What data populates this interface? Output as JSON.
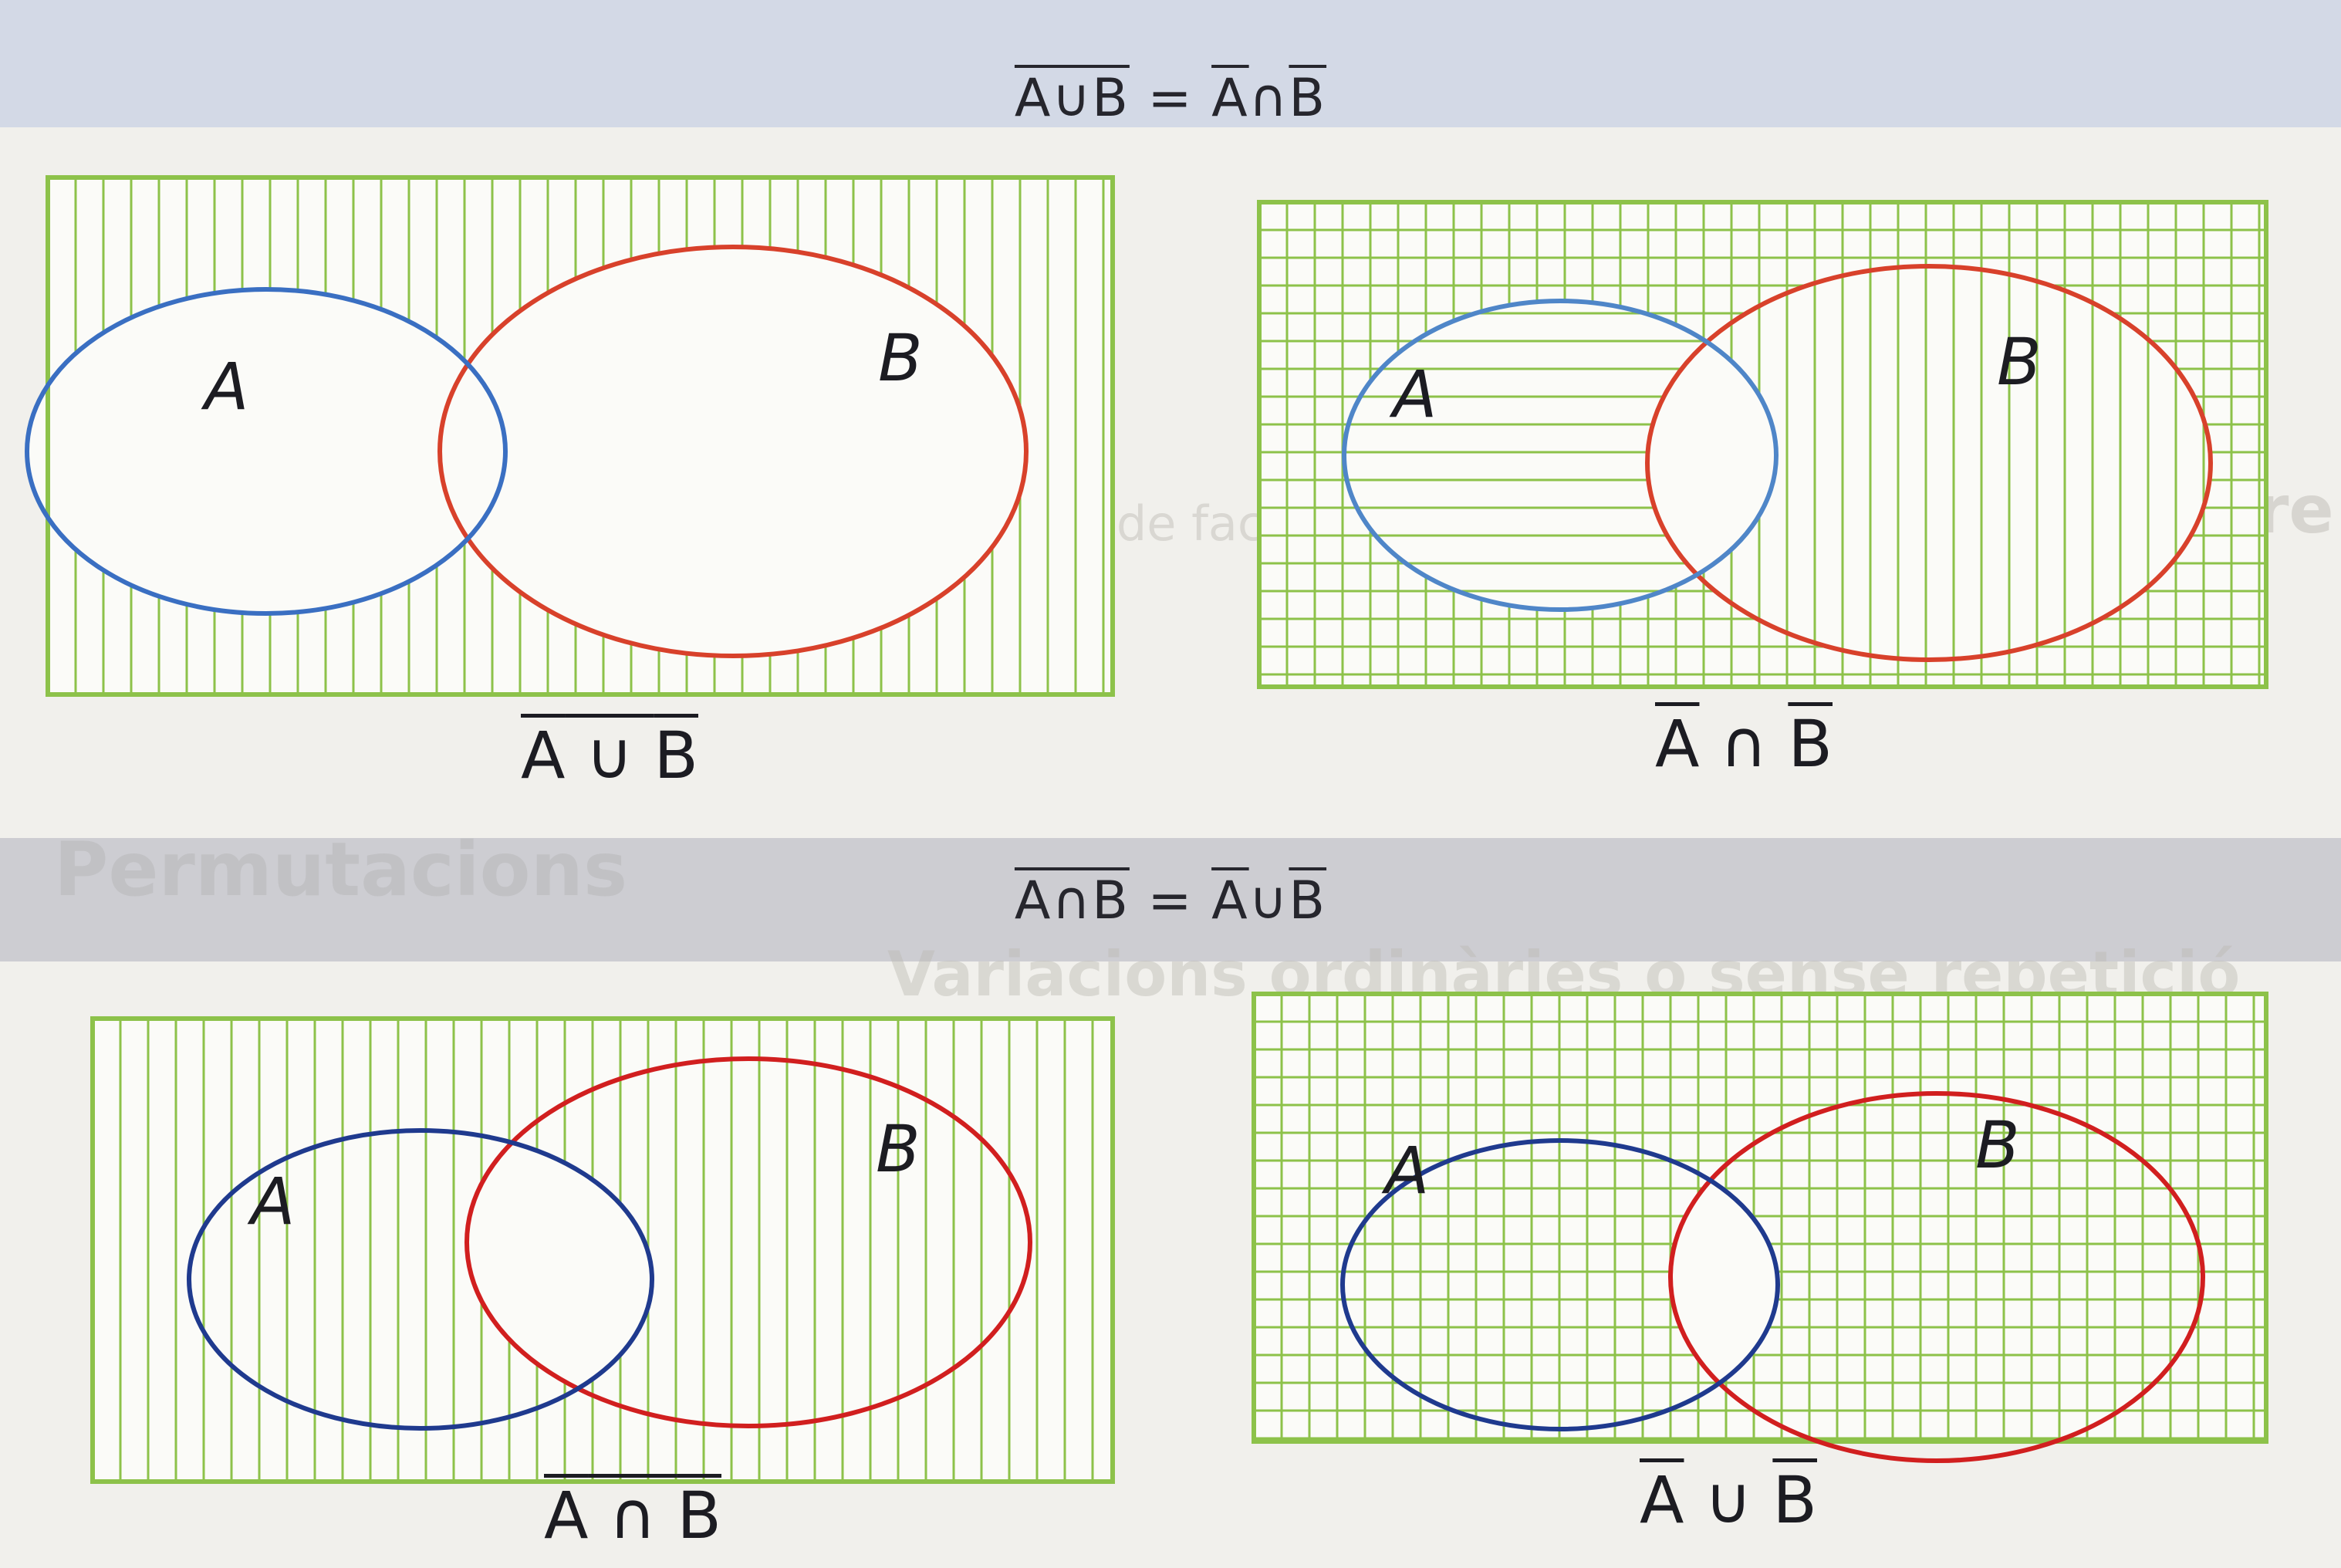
{
  "identities": [
    {
      "left_part": "A∪B",
      "eq": " = ",
      "right_a": "A",
      "op": "∩",
      "right_b": "B"
    },
    {
      "left_part": "A∩B",
      "eq": " = ",
      "right_a": "A",
      "op": "∪",
      "right_b": "B"
    }
  ],
  "diagrams": [
    {
      "label_a": "A",
      "label_b": "B",
      "caption": {
        "a": "A",
        "op": " ∪ ",
        "b": "B",
        "overline": "whole"
      },
      "hatch": "vertical",
      "colors": {
        "frame": "#8dc24a",
        "a": "#3a6fc2",
        "b": "#d8412b"
      }
    },
    {
      "label_a": "A",
      "label_b": "B",
      "caption": {
        "a": "A",
        "op": " ∩ ",
        "b": "B",
        "overline": "each"
      },
      "hatch": "grid",
      "colors": {
        "frame": "#8dc24a",
        "a": "#4f86c8",
        "b": "#d8412b"
      }
    },
    {
      "label_a": "A",
      "label_b": "B",
      "caption": {
        "a": "A",
        "op": " ∩ ",
        "b": "B",
        "overline": "whole"
      },
      "hatch": "vertical",
      "colors": {
        "frame": "#8dc24a",
        "a": "#1f3a8e",
        "b": "#d11f1f"
      }
    },
    {
      "label_a": "A",
      "label_b": "B",
      "caption": {
        "a": "A",
        "op": " ∪ ",
        "b": "B",
        "overline": "each"
      },
      "hatch": "grid",
      "colors": {
        "frame": "#8dc24a",
        "a": "#1f3a8e",
        "b": "#d11f1f"
      }
    }
  ],
  "background_text": [
    "Una permutació ordinària es calcula a partir de factorials.",
    "Factorial d'un nombre",
    "Permutacions",
    "Variacions ordinàries o sense repetició"
  ]
}
